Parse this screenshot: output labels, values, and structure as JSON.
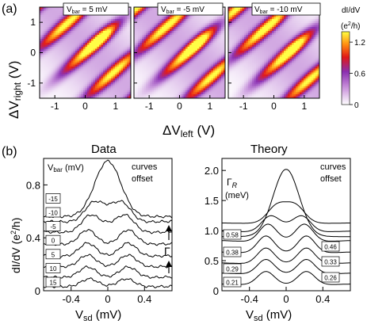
{
  "panel_a": {
    "letter": "(a)",
    "heatmaps": [
      {
        "label_main": "V",
        "label_sub": "bar",
        "label_value": " = 5 mV"
      },
      {
        "label_main": "V",
        "label_sub": "bar",
        "label_value": " = -5 mV"
      },
      {
        "label_main": "V",
        "label_sub": "bar",
        "label_value": " = -10 mV"
      }
    ],
    "xlabel_main": "ΔV",
    "xlabel_sub": "left",
    "xlabel_unit": " (V)",
    "ylabel_main": "ΔV",
    "ylabel_sub": "right",
    "ylabel_unit": " (V)",
    "colorbar": {
      "title_line1": "dI/dV",
      "title_line2_pre": "(e",
      "title_line2_sup": "2",
      "title_line2_post": "/h)",
      "ticks": [
        "1.2",
        "0.6",
        "0"
      ],
      "tick_values": [
        1.2,
        0.6,
        0
      ],
      "range": [
        0,
        1.4
      ]
    },
    "colors": {
      "low": "#ffffff",
      "mid1": "#9a3fbf",
      "mid2": "#e01818",
      "high": "#ffff40"
    }
  },
  "panel_b": {
    "letter": "(b)",
    "ylabel_pre": "dI/dV (e",
    "ylabel_sup": "2",
    "ylabel_post": "/h)",
    "data": {
      "title": "Data",
      "legend_main": "V",
      "legend_sub": "bar",
      "legend_unit": " (mV)",
      "note_line1": "curves",
      "note_line2": "offset",
      "gamma_label": "Γ",
      "labels": [
        "15",
        "10",
        "5",
        "0",
        "-5",
        "-10",
        "-15"
      ],
      "xlabel_main": "V",
      "xlabel_sub": "sd",
      "xlabel_unit": " (mV)"
    },
    "theory": {
      "title": "Theory",
      "legend_main": "Γ",
      "legend_sub": "R",
      "legend_unit": "(meV)",
      "note_line1": "curves",
      "note_line2": "offset",
      "labels_left": [
        "0.21",
        "0.29",
        "0.38",
        "0.58"
      ],
      "labels_right": [
        "0.26",
        "0.33",
        "0.46"
      ],
      "xlabel_main": "V",
      "xlabel_sub": "sd",
      "xlabel_unit": " (mV)"
    }
  },
  "chart_data": [
    {
      "type": "heatmap",
      "panel": "a",
      "x_range": [
        -1.5,
        1.5
      ],
      "y_range": [
        -1.5,
        1.5
      ],
      "x_ticks": [
        -1,
        0,
        1
      ],
      "y_ticks": [
        -1,
        0,
        1
      ],
      "x_tick_labels": [
        "-1",
        "0",
        "1"
      ],
      "y_tick_labels": [
        "-1",
        "0",
        "1"
      ],
      "z_range": [
        0,
        1.4
      ]
    },
    {
      "type": "line",
      "panel": "b-data",
      "x_range": [
        -0.7,
        0.7
      ],
      "y_range": [
        0,
        1.0
      ],
      "x_ticks": [
        -0.4,
        0,
        0.4
      ],
      "y_ticks": [
        0,
        0.4,
        0.8
      ],
      "x_tick_labels": [
        "-0.4",
        "0",
        "0.4"
      ],
      "y_tick_labels": [
        "0",
        "0.4",
        "0.8"
      ],
      "series": [
        {
          "label": "15",
          "offset": 0.03,
          "peak_pos": 0.2,
          "peak": 0.06,
          "zbp": 0.0
        },
        {
          "label": "10",
          "offset": 0.1,
          "peak_pos": 0.22,
          "peak": 0.08,
          "zbp": 0.0
        },
        {
          "label": "5",
          "offset": 0.18,
          "peak_pos": 0.22,
          "peak": 0.09,
          "zbp": 0.0
        },
        {
          "label": "0",
          "offset": 0.26,
          "peak_pos": 0.22,
          "peak": 0.1,
          "zbp": 0.0
        },
        {
          "label": "-5",
          "offset": 0.35,
          "peak_pos": 0.22,
          "peak": 0.11,
          "zbp": 0.0
        },
        {
          "label": "-10",
          "offset": 0.44,
          "peak_pos": 0.2,
          "peak": 0.11,
          "zbp": 0.06
        },
        {
          "label": "-15",
          "offset": 0.52,
          "peak_pos": 0.17,
          "peak": 0.1,
          "zbp": 0.1
        },
        {
          "label": "",
          "offset": 0.56,
          "peak_pos": 0.1,
          "peak": 0.0,
          "zbp": 0.42
        }
      ]
    },
    {
      "type": "line",
      "panel": "b-theory",
      "x_range": [
        -0.7,
        0.7
      ],
      "y_range": [
        0,
        2.2
      ],
      "x_ticks": [
        -0.4,
        0,
        0.4
      ],
      "y_ticks": [
        0,
        0.5,
        1.0,
        1.5,
        2.0
      ],
      "x_tick_labels": [
        "-0.4",
        "0",
        "0.4"
      ],
      "y_tick_labels": [
        "0",
        "0.5",
        "1.0",
        "1.5",
        "2.0"
      ],
      "series": [
        {
          "label": "0.21",
          "offset": 0.1,
          "peak_pos": 0.22,
          "peak": 0.22,
          "zbp": 0.0
        },
        {
          "label": "0.26",
          "offset": 0.28,
          "peak_pos": 0.22,
          "peak": 0.24,
          "zbp": 0.0
        },
        {
          "label": "0.29",
          "offset": 0.45,
          "peak_pos": 0.22,
          "peak": 0.26,
          "zbp": 0.0
        },
        {
          "label": "0.33",
          "offset": 0.63,
          "peak_pos": 0.22,
          "peak": 0.28,
          "zbp": 0.0
        },
        {
          "label": "0.38",
          "offset": 0.82,
          "peak_pos": 0.2,
          "peak": 0.28,
          "zbp": 0.02
        },
        {
          "label": "0.46",
          "offset": 0.98,
          "peak_pos": 0.18,
          "peak": 0.22,
          "zbp": 0.1
        },
        {
          "label": "0.58",
          "offset": 1.12,
          "peak_pos": 0.12,
          "peak": 0.14,
          "zbp": 0.24
        },
        {
          "label": "",
          "offset": 0.9,
          "peak_pos": 0.0,
          "peak": 0.0,
          "zbp": 1.12
        }
      ]
    }
  ]
}
